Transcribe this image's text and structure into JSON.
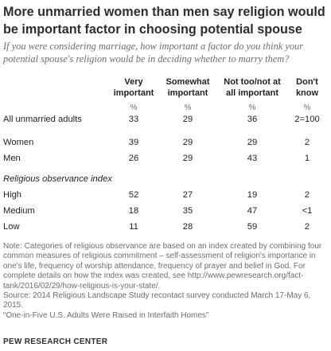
{
  "chart_data": {
    "type": "table",
    "title": "More unmarried women than men say religion would be important factor in choosing potential spouse",
    "subtitle": "If you were considering marriage, how important a factor do you think your potential spouse's religion would be in deciding whether to marry them?",
    "columns": [
      "Very important",
      "Somewhat important",
      "Not too/not at all important",
      "Don't know"
    ],
    "unit_label": "%",
    "rows": [
      {
        "label": "All unmarried adults",
        "values": [
          "33",
          "29",
          "36",
          "2=100"
        ]
      },
      {
        "label": "Women",
        "values": [
          "39",
          "29",
          "29",
          "2"
        ]
      },
      {
        "label": "Men",
        "values": [
          "26",
          "29",
          "43",
          "1"
        ]
      },
      {
        "label": "High",
        "values": [
          "52",
          "27",
          "19",
          "2"
        ]
      },
      {
        "label": "Medium",
        "values": [
          "18",
          "35",
          "47",
          "<1"
        ]
      },
      {
        "label": "Low",
        "values": [
          "11",
          "28",
          "59",
          "2"
        ]
      }
    ],
    "section_label": "Religious observance index"
  },
  "header": {
    "title_line1": "More unmarried women than men say religion would",
    "title_line2": "be important factor in choosing potential spouse",
    "subtitle_line1": "If you were considering marriage, how important a factor do you think your",
    "subtitle_line2": "potential spouse's religion would be in deciding whether to marry them?"
  },
  "columns": [
    {
      "line1": "Very",
      "line2": "important"
    },
    {
      "line1": "Somewhat",
      "line2": "important"
    },
    {
      "line1": "Not too/not at",
      "line2": "all important"
    },
    {
      "line1": "Don't",
      "line2": "know"
    }
  ],
  "notes": [
    "Note: Categories of religious observance are based on an index created by combining four",
    "common measures of religious commitment – self-assessment of religion's importance in",
    "one's life, frequency of worship attendance, frequency of prayer and belief in God. For",
    "complete details on how the index was created, see http://www.pewresearch.org/fact-",
    "tank/2016/02/29/how-religious-is-your-state/.",
    "Source: 2014 Religious Landscape Study recontact survey conducted March 17-May 6,",
    "2015.",
    "“One-in-Five U.S. Adults Were Raised in Interfaith Homes”"
  ],
  "footer": "PEW RESEARCH CENTER"
}
